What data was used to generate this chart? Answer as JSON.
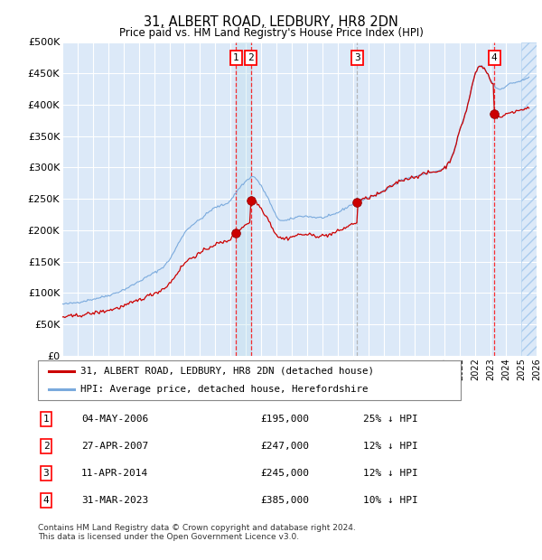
{
  "title": "31, ALBERT ROAD, LEDBURY, HR8 2DN",
  "subtitle": "Price paid vs. HM Land Registry's House Price Index (HPI)",
  "ylabel_ticks": [
    "£0",
    "£50K",
    "£100K",
    "£150K",
    "£200K",
    "£250K",
    "£300K",
    "£350K",
    "£400K",
    "£450K",
    "£500K"
  ],
  "ytick_values": [
    0,
    50000,
    100000,
    150000,
    200000,
    250000,
    300000,
    350000,
    400000,
    450000,
    500000
  ],
  "xmin": 1995.0,
  "xmax": 2026.0,
  "ymin": 0,
  "ymax": 500000,
  "background_color": "#dce9f8",
  "plot_bg_color": "#dce9f8",
  "hpi_color": "#7aaadd",
  "price_color": "#cc0000",
  "transactions": [
    {
      "num": 1,
      "date": "04-MAY-2006",
      "price": 195000,
      "year": 2006.34,
      "pct": "25%"
    },
    {
      "num": 2,
      "date": "27-APR-2007",
      "price": 247000,
      "year": 2007.32,
      "pct": "12%"
    },
    {
      "num": 3,
      "date": "11-APR-2014",
      "price": 245000,
      "year": 2014.27,
      "pct": "12%"
    },
    {
      "num": 4,
      "date": "31-MAR-2023",
      "price": 385000,
      "year": 2023.24,
      "pct": "10%"
    }
  ],
  "legend_label_red": "31, ALBERT ROAD, LEDBURY, HR8 2DN (detached house)",
  "legend_label_blue": "HPI: Average price, detached house, Herefordshire",
  "footer": "Contains HM Land Registry data © Crown copyright and database right 2024.\nThis data is licensed under the Open Government Licence v3.0."
}
